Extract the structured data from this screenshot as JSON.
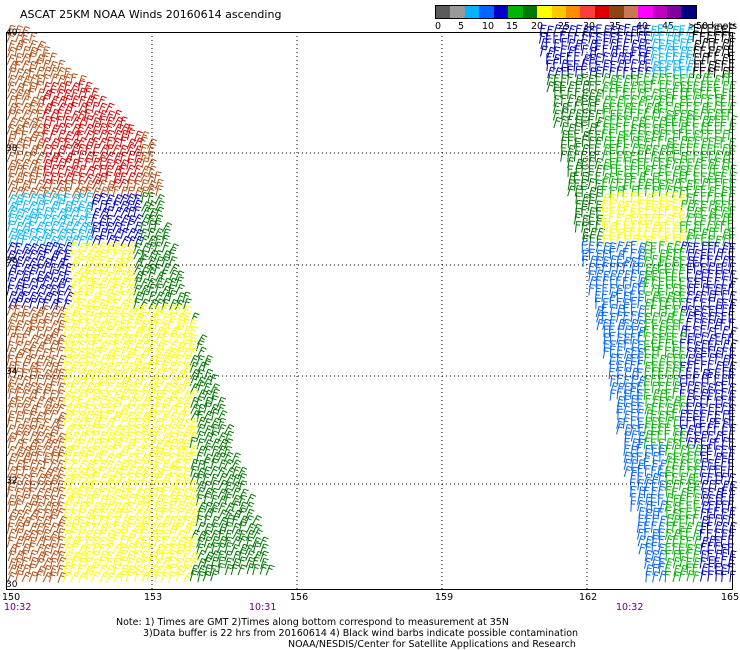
{
  "header": {
    "title": "ASCAT 25KM NOAA Winds 20160614 ascending"
  },
  "legend": {
    "colors": [
      "#5a5a5a",
      "#9a9a9a",
      "#00b4ff",
      "#0064ff",
      "#0000c8",
      "#00b400",
      "#007800",
      "#ffff00",
      "#ffc800",
      "#ff8c00",
      "#ff3c3c",
      "#dc0000",
      "#8b4513",
      "#c87850",
      "#ff00ff",
      "#c000c0",
      "#8000a0",
      "#000080"
    ],
    "labels": [
      "0",
      "5",
      "10",
      "15",
      "20",
      "25",
      "30",
      "35",
      "40",
      "45",
      ">50 knots"
    ]
  },
  "map": {
    "lat_labels": [
      "40",
      "38",
      "36",
      "34",
      "32",
      "30"
    ],
    "lon_labels": [
      "150",
      "153",
      "156",
      "159",
      "162",
      "165"
    ],
    "time_labels": [
      "10:32",
      "10:31",
      "10:32"
    ],
    "swath_left_colors": [
      "#b45014",
      "#dc0000",
      "#ffc800",
      "#00b4ff",
      "#0000c8",
      "#ffff00",
      "#007800",
      "#00b400"
    ],
    "swath_right_colors": [
      "#0000c8",
      "#0064ff",
      "#00b400",
      "#007800",
      "#ffff00",
      "#00b4ff",
      "#000000"
    ]
  },
  "notes": {
    "line1": "Note: 1) Times are GMT 2)Times along bottom correspond to measurement at 35N",
    "line2": "3)Data buffer is 22 hrs from 20160614 4) Black wind barbs indicate possible contamination",
    "line3": "NOAA/NESDIS/Center for Satellite Applications and Research"
  }
}
